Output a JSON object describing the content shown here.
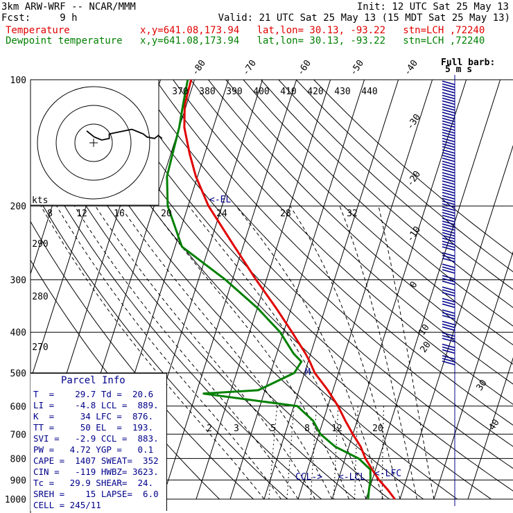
{
  "header": {
    "model": "3km ARW-WRF -- NCAR/MMM",
    "init": "Init: 12 UTC Sat 25 May 13",
    "fcst": "Fcst:     9 h",
    "valid": "Valid: 21 UTC Sat 25 May 13 (15 MDT Sat 25 May 13)",
    "temp_label": "Temperature",
    "dew_label": "Dewpoint temperature",
    "loc_info": "x,y=641.08,173.94   lat,lon= 30.13, -93.22   stn=LCH ,72240",
    "full_barb": "Full barb:",
    "full_barb_units": "5 m s",
    "temp_color": "#e00000",
    "dew_color": "#008000"
  },
  "labels": {
    "hodo_units": "kts",
    "el_marker": "<-EL",
    "ccl_marker": "CCL->",
    "lcl_marker": "<-LCL",
    "lfc_marker": "<-LFC",
    "m_marker": "M"
  },
  "parcel_info": {
    "title": "Parcel Info",
    "rows": [
      "T  =    29.7 Td =  20.6",
      "LI =    -4.8 LCL =  889.",
      "K  =     34 LFC =  876.",
      "TT =     50 EL  =  193.",
      "SVI =   -2.9 CCL =  883.",
      "PW =   4.72 YGP =   0.1",
      "CAPE =  1407 SWEAT=  352",
      "CIN =   -119 HWBZ= 3623.",
      "Tc =   29.9 SHEAR=  24.",
      "SREH =    15 LAPSE=  6.0",
      "CELL = 245/11"
    ]
  },
  "chart_data": {
    "type": "line",
    "title": "",
    "xlabel": "",
    "ylabel": "",
    "y_scale": "log",
    "pressure_levels_hPa": [
      100,
      200,
      300,
      400,
      500,
      600,
      700,
      800,
      900,
      1000
    ],
    "isotherm_labels_C": [
      -80,
      -70,
      -60,
      -50,
      -40,
      -30,
      -20,
      -10,
      0,
      10,
      20,
      30,
      40
    ],
    "theta_labels_K": [
      370,
      380,
      390,
      400,
      410,
      420,
      430,
      440
    ],
    "theta_left_labels_K": [
      290,
      280,
      270
    ],
    "mixing_ratio_labels_gkg": [
      2,
      3,
      5,
      8,
      12,
      20
    ],
    "hodograph_ring_labels_kts": [
      8,
      12,
      16,
      20,
      24,
      28,
      32
    ],
    "series": [
      {
        "name": "Temperature",
        "pressure": [
          1000,
          950,
          900,
          850,
          800,
          750,
          700,
          650,
          600,
          550,
          500,
          470,
          450,
          400,
          350,
          300,
          250,
          200,
          170,
          150,
          130,
          115,
          100
        ],
        "temp_C": [
          28.5,
          25.5,
          22.0,
          19.0,
          16.0,
          13.5,
          10.0,
          6.5,
          3.0,
          -1.5,
          -7.0,
          -9.5,
          -11.5,
          -17.5,
          -24.5,
          -33.0,
          -42.5,
          -54.0,
          -60.5,
          -64.5,
          -68.5,
          -70.5,
          -71.0
        ]
      },
      {
        "name": "Dewpoint temperature",
        "pressure": [
          1000,
          950,
          900,
          850,
          800,
          750,
          700,
          650,
          600,
          560,
          550,
          500,
          470,
          450,
          400,
          350,
          300,
          250,
          200,
          170,
          150,
          130,
          115,
          100
        ],
        "temp_C": [
          20.6,
          20.0,
          19.5,
          18.5,
          14.0,
          6.0,
          0.5,
          -3.0,
          -9.0,
          -38.0,
          -22.0,
          -13.0,
          -12.0,
          -15.0,
          -21.0,
          -30.0,
          -42.0,
          -58.0,
          -66.0,
          -69.0,
          -69.5,
          -70.0,
          -71.0,
          -72.0
        ]
      }
    ],
    "hodograph_kts": {
      "u": [
        0,
        1,
        2,
        4,
        6,
        6,
        8,
        10,
        12,
        14,
        15,
        16,
        18,
        19,
        20
      ],
      "v": [
        -1,
        1,
        3,
        5,
        4,
        1,
        0,
        -1,
        -2,
        0,
        1,
        3,
        4,
        2,
        4
      ]
    }
  }
}
